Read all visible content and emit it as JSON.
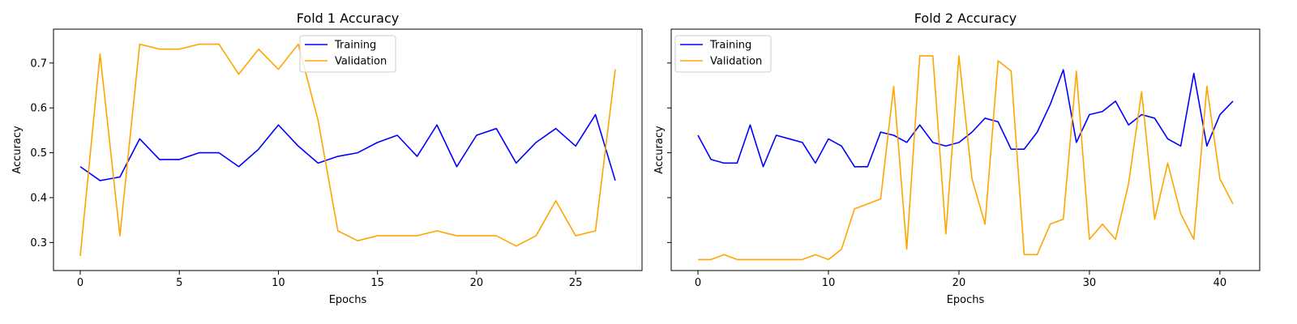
{
  "chart_data": [
    {
      "type": "line",
      "title": "Fold 1 Accuracy",
      "xlabel": "Epochs",
      "ylabel": "Accuracy",
      "xlim": [
        -1.35,
        28.35
      ],
      "ylim": [
        0.2375,
        0.7755
      ],
      "xticks": [
        0,
        5,
        10,
        15,
        20,
        25
      ],
      "yticks": [
        0.3,
        0.4,
        0.5,
        0.6,
        0.7
      ],
      "ytick_labels": [
        "0.3",
        "0.4",
        "0.5",
        "0.6",
        "0.7"
      ],
      "legend_position": "top-center",
      "series": [
        {
          "name": "Training",
          "color": "#0000ff",
          "values": [
            0.469,
            0.438,
            0.446,
            0.531,
            0.485,
            0.485,
            0.5,
            0.5,
            0.469,
            0.508,
            0.562,
            0.515,
            0.477,
            0.492,
            0.5,
            0.523,
            0.539,
            0.492,
            0.562,
            0.469,
            0.539,
            0.554,
            0.477,
            0.523,
            0.554,
            0.515,
            0.585,
            0.438
          ]
        },
        {
          "name": "Validation",
          "color": "#ffa500",
          "values": [
            0.27,
            0.72,
            0.315,
            0.742,
            0.731,
            0.731,
            0.742,
            0.742,
            0.675,
            0.731,
            0.686,
            0.742,
            0.573,
            0.326,
            0.304,
            0.315,
            0.315,
            0.315,
            0.326,
            0.315,
            0.315,
            0.315,
            0.292,
            0.315,
            0.393,
            0.315,
            0.326,
            0.686
          ]
        }
      ]
    },
    {
      "type": "line",
      "title": "Fold 2 Accuracy",
      "xlabel": "Epochs",
      "ylabel": "Accuracy",
      "xlim": [
        -2.05,
        43.05
      ],
      "ylim": [
        0.2375,
        0.7755
      ],
      "xticks": [
        0,
        10,
        20,
        30,
        40
      ],
      "yticks": [
        0.3,
        0.4,
        0.5,
        0.6,
        0.7
      ],
      "ytick_labels": [
        "",
        "",
        "",
        "",
        ""
      ],
      "legend_position": "top-left",
      "series": [
        {
          "name": "Training",
          "color": "#0000ff",
          "values": [
            0.539,
            0.485,
            0.477,
            0.477,
            0.562,
            0.469,
            0.539,
            0.531,
            0.523,
            0.477,
            0.531,
            0.515,
            0.469,
            0.469,
            0.546,
            0.539,
            0.523,
            0.562,
            0.523,
            0.515,
            0.523,
            0.546,
            0.577,
            0.569,
            0.508,
            0.508,
            0.546,
            0.608,
            0.685,
            0.523,
            0.585,
            0.592,
            0.615,
            0.562,
            0.585,
            0.577,
            0.531,
            0.515,
            0.677,
            0.515,
            0.585,
            0.615
          ]
        },
        {
          "name": "Validation",
          "color": "#ffa500",
          "values": [
            0.262,
            0.262,
            0.273,
            0.262,
            0.262,
            0.262,
            0.262,
            0.262,
            0.262,
            0.273,
            0.262,
            0.285,
            0.375,
            0.386,
            0.397,
            0.648,
            0.285,
            0.716,
            0.716,
            0.319,
            0.716,
            0.442,
            0.341,
            0.705,
            0.682,
            0.273,
            0.273,
            0.341,
            0.352,
            0.682,
            0.307,
            0.341,
            0.307,
            0.431,
            0.636,
            0.352,
            0.477,
            0.364,
            0.307,
            0.648,
            0.442,
            0.386
          ]
        }
      ]
    }
  ]
}
